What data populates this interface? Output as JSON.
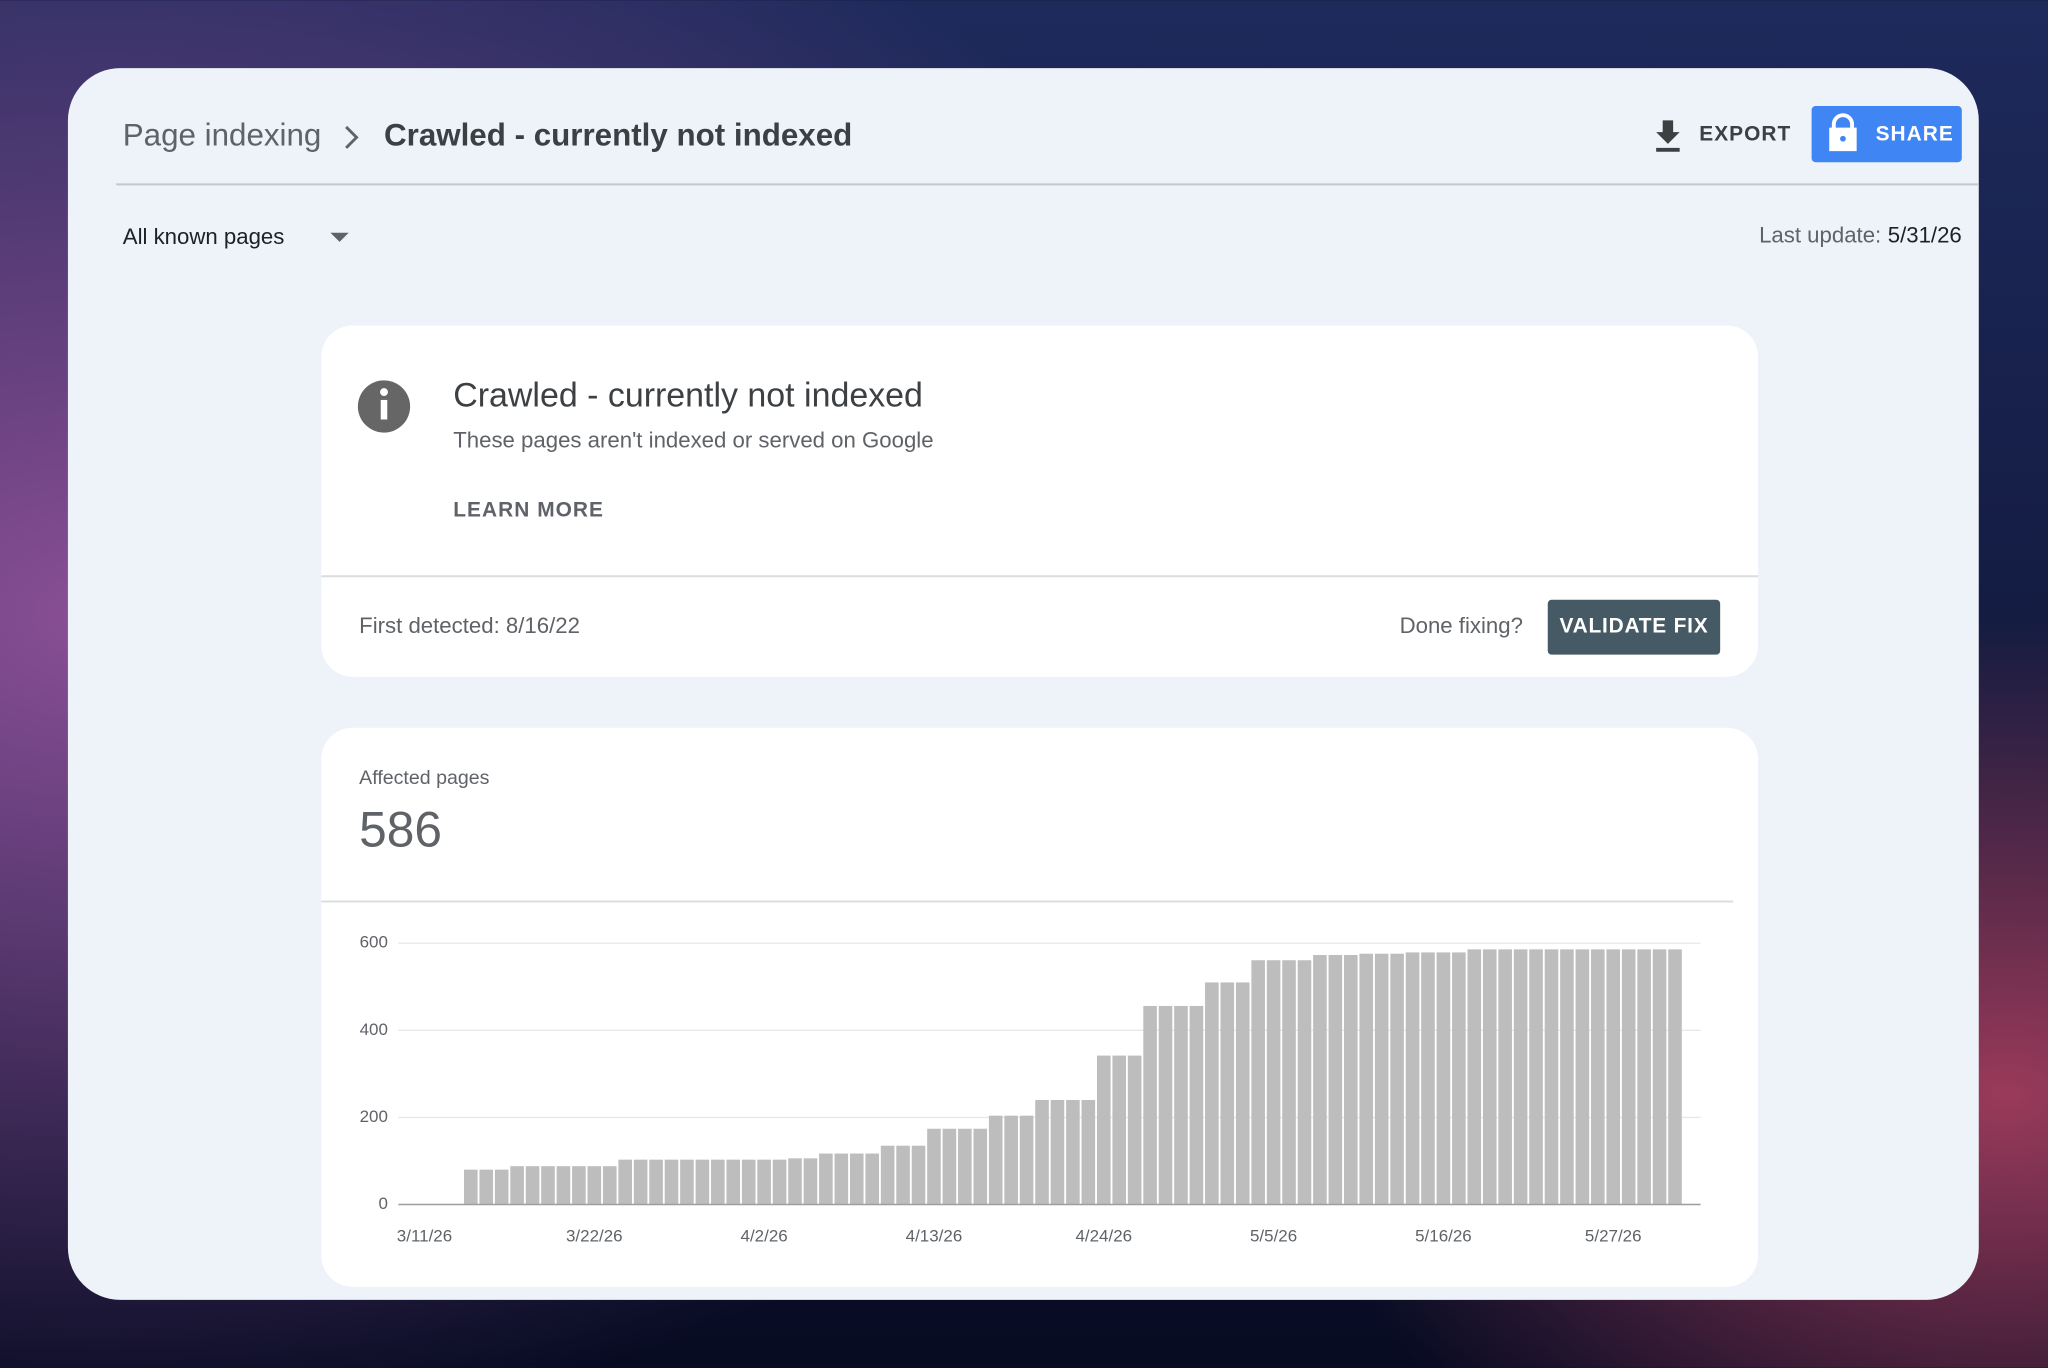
{
  "header": {
    "breadcrumb_parent": "Page indexing",
    "breadcrumb_current": "Crawled - currently not indexed",
    "export": "EXPORT",
    "share": "SHARE"
  },
  "filter": "All known pages",
  "last_update": {
    "label": "Last update:",
    "value": "5/31/26"
  },
  "card": {
    "title": "Crawled - currently not indexed",
    "subtitle": "These pages aren't indexed or served on Google",
    "learn_more": "LEARN MORE",
    "first_detected": "First detected: 8/16/22",
    "done_fixing": "Done fixing?",
    "validate": "VALIDATE FIX"
  },
  "summary": {
    "label": "Affected pages",
    "value": 586
  },
  "chart_data": {
    "type": "bar",
    "color": "#bdbdbd",
    "grid": true,
    "categories": [
      "3/11/26",
      null,
      null,
      null,
      null,
      null,
      null,
      null,
      null,
      null,
      null,
      "3/22/26",
      null,
      null,
      null,
      null,
      null,
      null,
      null,
      null,
      null,
      null,
      "4/2/26",
      null,
      null,
      null,
      null,
      null,
      null,
      null,
      null,
      null,
      null,
      "4/13/26",
      null,
      null,
      null,
      null,
      null,
      null,
      null,
      null,
      null,
      null,
      "4/24/26",
      null,
      null,
      null,
      null,
      null,
      null,
      null,
      null,
      null,
      null,
      "5/5/26",
      null,
      null,
      null,
      null,
      null,
      null,
      null,
      null,
      null,
      null,
      "5/16/26",
      null,
      null,
      null,
      null,
      null,
      null,
      null,
      null,
      null,
      null,
      "5/27/26",
      null,
      null,
      null,
      null
    ],
    "values": [
      0,
      0,
      0,
      80,
      80,
      80,
      88,
      88,
      88,
      88,
      88,
      88,
      88,
      103,
      103,
      103,
      103,
      103,
      103,
      103,
      103,
      103,
      103,
      103,
      106,
      106,
      117,
      117,
      117,
      117,
      135,
      135,
      135,
      174,
      174,
      174,
      174,
      204,
      204,
      204,
      240,
      240,
      240,
      240,
      342,
      342,
      342,
      456,
      456,
      456,
      456,
      510,
      510,
      510,
      561,
      561,
      561,
      561,
      573,
      573,
      573,
      576,
      576,
      576,
      579,
      579,
      579,
      579,
      586,
      586,
      586,
      586,
      586,
      586,
      586,
      586,
      586,
      586,
      586,
      586,
      586,
      586
    ],
    "ylim": [
      0,
      600
    ],
    "yticks": [
      0,
      200,
      400,
      600
    ]
  }
}
